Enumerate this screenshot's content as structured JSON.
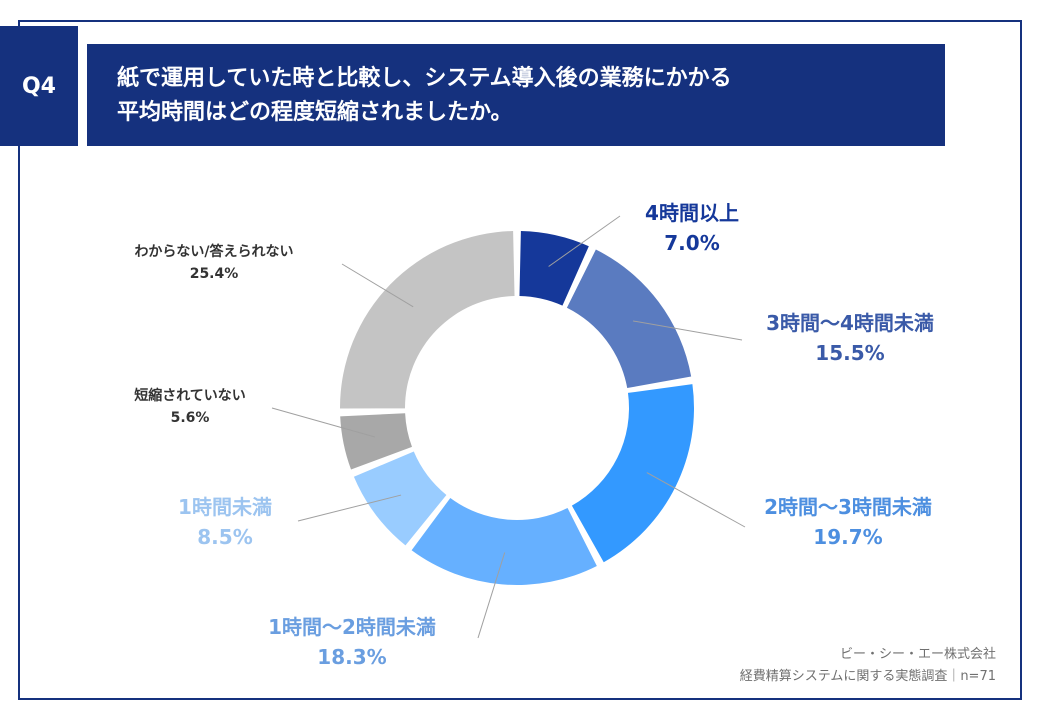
{
  "header": {
    "badge": "Q4",
    "title_line1": "紙で運用していた時と比較し、システム導入後の業務にかかる",
    "title_line2": "平均時間はどの程度短縮されましたか。"
  },
  "chart_data": {
    "type": "pie",
    "donut": true,
    "unit": "%",
    "slices": [
      {
        "label": "4時間以上",
        "value": 7.0,
        "value_label": "7.0%",
        "color": "#15389a"
      },
      {
        "label": "3時間～4時間未満",
        "value": 15.5,
        "value_label": "15.5%",
        "color": "#5a7bc0"
      },
      {
        "label": "2時間～3時間未満",
        "value": 19.7,
        "value_label": "19.7%",
        "color": "#3399ff"
      },
      {
        "label": "1時間～2時間未満",
        "value": 18.3,
        "value_label": "18.3%",
        "color": "#66b0ff"
      },
      {
        "label": "1時間未満",
        "value": 8.5,
        "value_label": "8.5%",
        "color": "#99ccff"
      },
      {
        "label": "短縮されていない",
        "value": 5.6,
        "value_label": "5.6%",
        "color": "#a8a8a8"
      },
      {
        "label": "わからない/答えられない",
        "value": 25.4,
        "value_label": "25.4%",
        "color": "#c4c4c4"
      }
    ],
    "label_colors": {
      "4時間以上": "#15389a",
      "3時間～4時間未満": "#3a5aa8",
      "2時間～3時間未満": "#4d8fe0",
      "1時間～2時間未満": "#6a9ee0",
      "1時間未満": "#9cc4f0",
      "短縮されていない": "#333333",
      "わからない/答えられない": "#333333"
    }
  },
  "footer": {
    "source_line1": "ビー・シー・エー株式会社",
    "source_line2": "経費精算システムに関する実態調査｜n=71"
  }
}
